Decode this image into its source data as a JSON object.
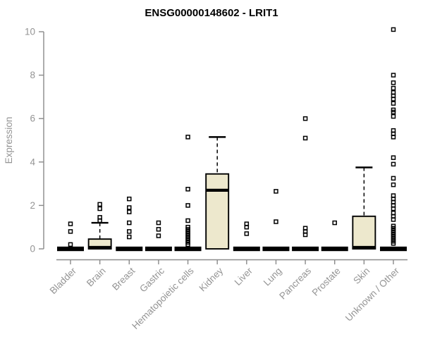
{
  "chart_data": {
    "type": "boxplot",
    "title": "ENSG00000148602 - LRIT1",
    "xlabel": "",
    "ylabel": "Expression",
    "ylim": [
      0,
      10
    ],
    "yticks": [
      0,
      2,
      4,
      6,
      8,
      10
    ],
    "grid": false,
    "colors": {
      "box_fill": "#ede8cd",
      "box_stroke": "#000000",
      "axis_line": "#8a8a8a",
      "axis_text": "#949494",
      "title_text": "#000000"
    },
    "categories": [
      "Bladder",
      "Brain",
      "Breast",
      "Gastric",
      "Hematopoietic cells",
      "Kidney",
      "Liver",
      "Lung",
      "Pancreas",
      "Prostate",
      "Skin",
      "Unknown / Other"
    ],
    "series": [
      {
        "category": "Bladder",
        "q1": 0,
        "median": 0,
        "q3": 0,
        "whisker_low": 0,
        "whisker_high": 0,
        "outliers": [
          1.15,
          0.8,
          0.2
        ]
      },
      {
        "category": "Brain",
        "q1": 0,
        "median": 0,
        "q3": 0.45,
        "whisker_low": 0,
        "whisker_high": 1.2,
        "outliers": [
          2.05,
          1.85,
          1.45,
          1.3
        ]
      },
      {
        "category": "Breast",
        "q1": 0,
        "median": 0,
        "q3": 0,
        "whisker_low": 0,
        "whisker_high": 0,
        "outliers": [
          2.3,
          1.9,
          1.7,
          1.2,
          0.8,
          0.55
        ]
      },
      {
        "category": "Gastric",
        "q1": 0,
        "median": 0,
        "q3": 0,
        "whisker_low": 0,
        "whisker_high": 0,
        "outliers": [
          1.2,
          0.9,
          0.6
        ]
      },
      {
        "category": "Hematopoietic cells",
        "q1": 0,
        "median": 0,
        "q3": 0,
        "whisker_low": 0,
        "whisker_high": 0,
        "outliers": [
          5.15,
          2.75,
          2.0,
          1.3,
          1.0,
          0.9,
          0.8,
          0.7,
          0.6,
          0.5,
          0.4,
          0.3,
          0.2
        ]
      },
      {
        "category": "Kidney",
        "q1": 0,
        "median": 2.7,
        "q3": 3.45,
        "whisker_low": 0,
        "whisker_high": 5.15,
        "outliers": []
      },
      {
        "category": "Liver",
        "q1": 0,
        "median": 0,
        "q3": 0,
        "whisker_low": 0,
        "whisker_high": 0,
        "outliers": [
          1.15,
          1.0,
          0.7
        ]
      },
      {
        "category": "Lung",
        "q1": 0,
        "median": 0,
        "q3": 0,
        "whisker_low": 0,
        "whisker_high": 0,
        "outliers": [
          2.65,
          1.25
        ]
      },
      {
        "category": "Pancreas",
        "q1": 0,
        "median": 0,
        "q3": 0,
        "whisker_low": 0,
        "whisker_high": 0,
        "outliers": [
          6.0,
          5.1,
          0.95,
          0.8,
          0.65
        ]
      },
      {
        "category": "Prostate",
        "q1": 0,
        "median": 0,
        "q3": 0,
        "whisker_low": 0,
        "whisker_high": 0,
        "outliers": [
          1.2
        ]
      },
      {
        "category": "Skin",
        "q1": 0,
        "median": 0,
        "q3": 1.5,
        "whisker_low": 0,
        "whisker_high": 3.75,
        "outliers": []
      },
      {
        "category": "Unknown / Other",
        "q1": 0,
        "median": 0,
        "q3": 0,
        "whisker_low": 0,
        "whisker_high": 0,
        "outliers": [
          10.1,
          8.0,
          7.65,
          7.4,
          7.2,
          7.05,
          6.9,
          6.7,
          6.4,
          6.3,
          6.1,
          5.45,
          5.3,
          5.15,
          4.2,
          3.9,
          3.25,
          2.95,
          2.45,
          2.3,
          2.15,
          2.0,
          1.85,
          1.65,
          1.5,
          1.35,
          1.05,
          0.95,
          0.85,
          0.75,
          0.65,
          0.55,
          0.45,
          0.35,
          0.25
        ]
      }
    ]
  }
}
